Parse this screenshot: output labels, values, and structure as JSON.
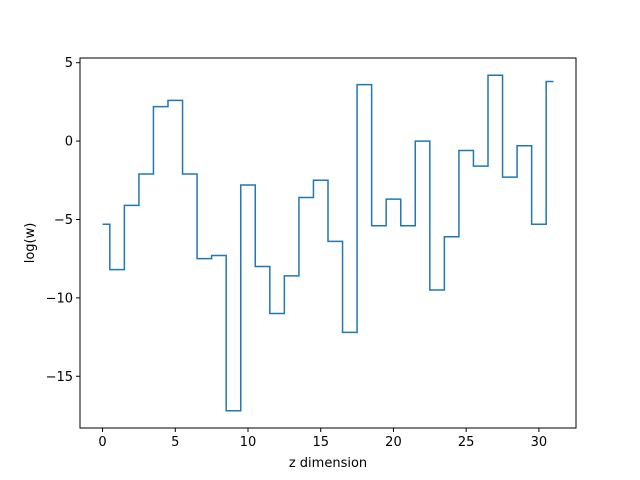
{
  "chart_data": {
    "type": "line",
    "drawstyle": "steps-mid",
    "title": "",
    "xlabel": "z dimension",
    "ylabel": "log(w)",
    "xlim": [
      -1.55,
      32.55
    ],
    "ylim": [
      -18.3,
      5.3
    ],
    "xticks": [
      0,
      5,
      10,
      15,
      20,
      25,
      30
    ],
    "yticks": [
      5,
      0,
      -5,
      -10,
      -15
    ],
    "ytick_labels": [
      "5",
      "0",
      "−5",
      "−10",
      "−15"
    ],
    "grid": false,
    "legend": "none",
    "line_color": "#1f77b4",
    "x": [
      0,
      1,
      2,
      3,
      4,
      5,
      6,
      7,
      8,
      9,
      10,
      11,
      12,
      13,
      14,
      15,
      16,
      17,
      18,
      19,
      20,
      21,
      22,
      23,
      24,
      25,
      26,
      27,
      28,
      29,
      30,
      31
    ],
    "y": [
      -5.3,
      -8.2,
      -4.1,
      -2.1,
      2.2,
      2.6,
      -2.1,
      -7.5,
      -7.3,
      -17.2,
      -2.8,
      -8.0,
      -11.0,
      -8.6,
      -3.6,
      -2.5,
      -6.4,
      -12.2,
      3.6,
      -5.4,
      -3.7,
      -5.4,
      0.0,
      -9.5,
      -6.1,
      -0.6,
      -1.6,
      4.2,
      -2.3,
      -0.3,
      -5.3,
      3.8
    ]
  }
}
